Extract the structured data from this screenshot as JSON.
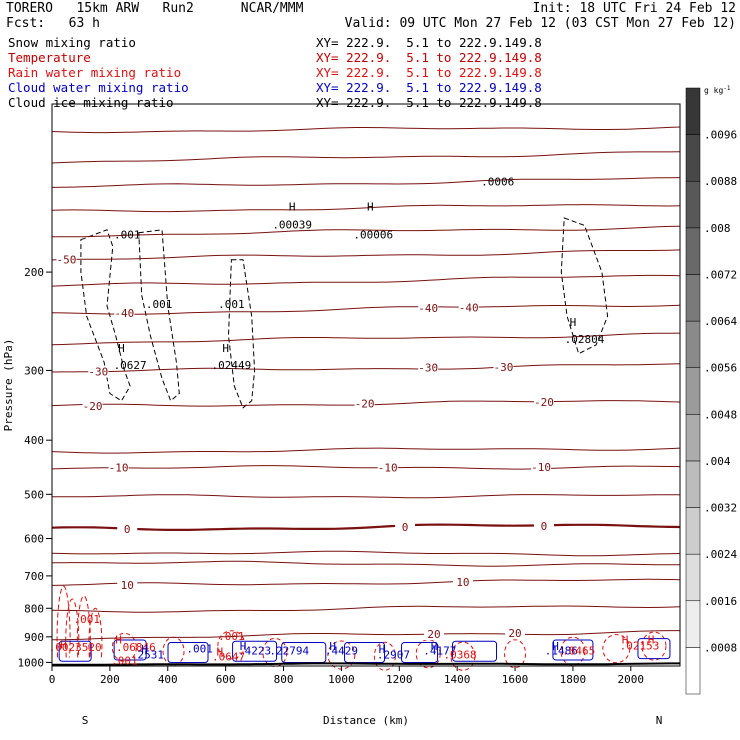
{
  "header": {
    "model": "TORERO   15km ARW   Run2      NCAR/MMM",
    "init": "Init: 18 UTC Fri 24 Feb 12",
    "fcst": "Fcst:   63 h",
    "valid": "Valid: 09 UTC Mon 27 Feb 12 (03 CST Mon 27 Feb 12)"
  },
  "fields": [
    {
      "name": "Snow mixing ratio",
      "xy": "XY= 222.9.  5.1 to 222.9.149.8",
      "color": "#000000"
    },
    {
      "name": "Temperature",
      "xy": "XY= 222.9.  5.1 to 222.9.149.8",
      "color": "#c00000"
    },
    {
      "name": "Rain water mixing ratio",
      "xy": "XY= 222.9.  5.1 to 222.9.149.8",
      "color": "#e01010"
    },
    {
      "name": "Cloud water mixing ratio",
      "xy": "XY= 222.9.  5.1 to 222.9.149.8",
      "color": "#0000c0"
    },
    {
      "name": "Cloud ice mixing ratio",
      "xy": "XY= 222.9.  5.1 to 222.9.149.8",
      "color": "#000000"
    }
  ],
  "colors": {
    "temperature": "#7a1010",
    "temperature_zero": "#7a1010",
    "snow": "#000000",
    "rain": "#e01010",
    "cloud_water": "#0000c0",
    "cloud_ice": "#000000",
    "ground": "#000000"
  },
  "chart_data": {
    "type": "cross-section-contour",
    "xlabel": "Distance (km)",
    "ylabel": "Pressure (hPa)",
    "xlim": [
      0,
      2170
    ],
    "x_ticks": [
      0,
      200,
      400,
      600,
      800,
      1000,
      1200,
      1400,
      1600,
      1800,
      2000
    ],
    "y_ticks": [
      200,
      300,
      400,
      500,
      600,
      700,
      800,
      900,
      1000
    ],
    "y_log_pressure": true,
    "ylim": [
      100,
      1015
    ],
    "endpoints": {
      "left": "S",
      "right": "N"
    },
    "colorbar": {
      "unit": "g kg",
      "unit_exp": "-1",
      "levels": [
        ".0008",
        ".0016",
        ".0024",
        ".0032",
        ".004",
        ".0048",
        ".0056",
        ".0064",
        ".0072",
        ".008",
        ".0088",
        ".0096"
      ]
    },
    "temperature_contours": [
      {
        "p0": 112,
        "p1": 110,
        "label": ""
      },
      {
        "p0": 127,
        "p1": 122,
        "label": ""
      },
      {
        "p0": 141,
        "p1": 136,
        "label": ""
      },
      {
        "p0": 156,
        "p1": 151,
        "label": ""
      },
      {
        "p0": 172,
        "p1": 166,
        "label": ""
      },
      {
        "p0": 190,
        "p1": 183,
        "label": "-50",
        "label_x": [
          50
        ]
      },
      {
        "p0": 212,
        "p1": 203,
        "label": ""
      },
      {
        "p0": 238,
        "p1": 228,
        "label": "-40",
        "label_x": [
          250,
          1300,
          1440
        ]
      },
      {
        "p0": 268,
        "p1": 258,
        "label": ""
      },
      {
        "p0": 302,
        "p1": 293,
        "label": "-30",
        "label_x": [
          160,
          1300,
          1560
        ]
      },
      {
        "p0": 348,
        "p1": 340,
        "label": "-20",
        "label_x": [
          140,
          1080,
          1700
        ]
      },
      {
        "p0": 420,
        "p1": 413,
        "label": ""
      },
      {
        "p0": 448,
        "p1": 447,
        "label": "-10",
        "label_x": [
          230,
          1160,
          1690
        ]
      },
      {
        "p0": 505,
        "p1": 503,
        "label": ""
      },
      {
        "p0": 578,
        "p1": 567,
        "label": "0",
        "label_x": [
          260,
          1220,
          1700
        ],
        "bold": true
      },
      {
        "p0": 635,
        "p1": 640,
        "label": ""
      },
      {
        "p0": 662,
        "p1": 670,
        "label": ""
      },
      {
        "p0": 728,
        "p1": 712,
        "label": "10",
        "label_x": [
          260,
          1420
        ]
      },
      {
        "p0": 812,
        "p1": 790,
        "label": ""
      },
      {
        "p0": 905,
        "p1": 880,
        "label": "20",
        "label_x": [
          1320,
          1600
        ]
      }
    ],
    "annotations": [
      {
        "text": "H",
        "x": 830,
        "p": 155,
        "color": "#000000"
      },
      {
        "text": ".00039",
        "x": 830,
        "p": 167,
        "color": "#000000"
      },
      {
        "text": "H",
        "x": 1100,
        "p": 155,
        "color": "#000000"
      },
      {
        "text": ".00006",
        "x": 1110,
        "p": 174,
        "color": "#000000"
      },
      {
        "text": ".0006",
        "x": 1540,
        "p": 140,
        "color": "#000000"
      },
      {
        "text": ".001",
        "x": 260,
        "p": 174,
        "color": "#000000"
      },
      {
        "text": ".001",
        "x": 370,
        "p": 232,
        "color": "#000000"
      },
      {
        "text": ".001",
        "x": 620,
        "p": 232,
        "color": "#000000"
      },
      {
        "text": "H",
        "x": 240,
        "p": 278,
        "color": "#000000"
      },
      {
        "text": ".0627",
        "x": 270,
        "p": 298,
        "color": "#000000"
      },
      {
        "text": "H",
        "x": 600,
        "p": 278,
        "color": "#000000"
      },
      {
        "text": ".02449",
        "x": 620,
        "p": 298,
        "color": "#000000"
      },
      {
        "text": "H",
        "x": 1800,
        "p": 250,
        "color": "#000000"
      },
      {
        "text": ".02804",
        "x": 1840,
        "p": 268,
        "color": "#000000"
      },
      {
        "text": ".001",
        "x": 120,
        "p": 850,
        "color": "#e01010"
      },
      {
        "text": ".001",
        "x": 620,
        "p": 912,
        "color": "#e01010"
      },
      {
        "text": "H",
        "x": 230,
        "p": 925,
        "color": "#e01010"
      },
      {
        "text": "H",
        "x": 40,
        "p": 945,
        "color": "#e01010"
      },
      {
        "text": ".0023520",
        "x": 80,
        "p": 955,
        "color": "#e01010"
      },
      {
        "text": ".06846",
        "x": 290,
        "p": 955,
        "color": "#e01010"
      },
      {
        "text": "H",
        "x": 320,
        "p": 962,
        "color": "#0000c0"
      },
      {
        "text": ".001",
        "x": 510,
        "p": 960,
        "color": "#0000c0"
      },
      {
        "text": "H",
        "x": 660,
        "p": 950,
        "color": "#0000c0"
      },
      {
        "text": ".4223",
        "x": 700,
        "p": 968,
        "color": "#0000c0"
      },
      {
        "text": ".22794",
        "x": 820,
        "p": 968,
        "color": "#0000c0"
      },
      {
        "text": "H",
        "x": 970,
        "p": 950,
        "color": "#0000c0"
      },
      {
        "text": ".4429",
        "x": 1000,
        "p": 968,
        "color": "#0000c0"
      },
      {
        "text": "H",
        "x": 1140,
        "p": 962,
        "color": "#0000c0"
      },
      {
        "text": ".2907",
        "x": 1180,
        "p": 984,
        "color": "#0000c0"
      },
      {
        "text": "H",
        "x": 1320,
        "p": 950,
        "color": "#0000c0"
      },
      {
        "text": ".4177",
        "x": 1340,
        "p": 968,
        "color": "#0000c0"
      },
      {
        "text": ".0368",
        "x": 1410,
        "p": 984,
        "color": "#e01010"
      },
      {
        "text": ".2531",
        "x": 330,
        "p": 984,
        "color": "#0000c0"
      },
      {
        "text": "H",
        "x": 580,
        "p": 972,
        "color": "#e01010"
      },
      {
        "text": ".0647",
        "x": 610,
        "p": 992,
        "color": "#e01010"
      },
      {
        "text": "H",
        "x": 1740,
        "p": 950,
        "color": "#0000c0"
      },
      {
        "text": ".1486",
        "x": 1760,
        "p": 968,
        "color": "#0000c0"
      },
      {
        "text": ".8465",
        "x": 1820,
        "p": 968,
        "color": "#e01010"
      },
      {
        "text": "H",
        "x": 1980,
        "p": 925,
        "color": "#e01010"
      },
      {
        "text": "H",
        "x": 2070,
        "p": 925,
        "color": "#e01010"
      },
      {
        "text": ".02153",
        "x": 2030,
        "p": 948,
        "color": "#e01010"
      },
      {
        "text": ".001",
        "x": 250,
        "p": 1008,
        "color": "#e01010"
      }
    ]
  }
}
